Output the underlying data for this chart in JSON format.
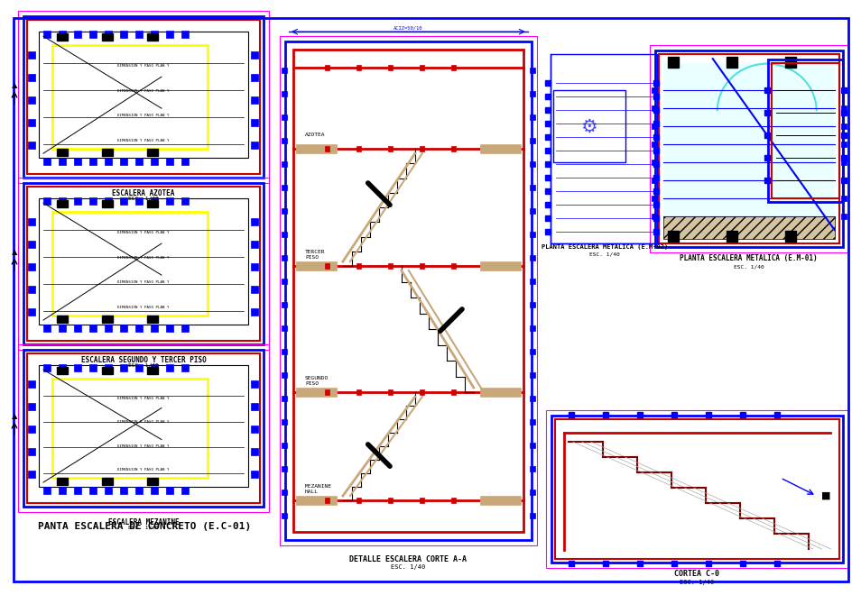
{
  "bg_color": "#f0f0f8",
  "white": "#ffffff",
  "blue": "#0000ff",
  "red": "#cc0000",
  "dark_red": "#800000",
  "yellow": "#ffff00",
  "cyan": "#00cccc",
  "black": "#000000",
  "gray": "#888888",
  "tan": "#c8a87a",
  "title_main": "PANTA ESCALERA DE CONCRETO (E.C-01)",
  "label_azotea": "ESCALERA AZOTEA",
  "label_segundo": "ESCALERA SEGUNDO Y TERCER PISO",
  "label_mezanine": "ESCALERA MEZANINE",
  "label_detalle": "DETALLE ESCALERA CORTE A-A",
  "label_planta1": "PLANTA ESCALERA METALICA (E.M-01)",
  "label_planta2": "PLANTA ESCALERA METALICA (E.M-02)",
  "label_cortec": "CORTEA C-0"
}
